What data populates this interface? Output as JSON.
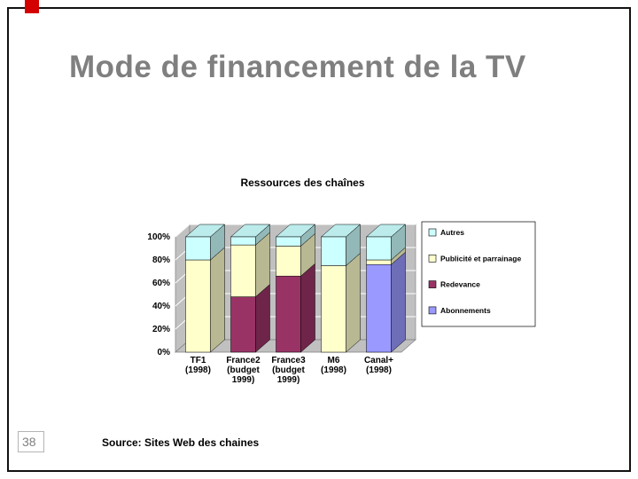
{
  "slide": {
    "title": "Mode de financement de la TV",
    "page_number": "38",
    "source_text": "Source: Sites Web des chaines",
    "accent_color": "#d40000",
    "title_color": "#7f7f7f"
  },
  "chart_data": {
    "type": "bar",
    "variant": "3d-stacked-100-percent-columns",
    "title": "Ressources des chaînes",
    "categories": [
      "TF1 (1998)",
      "France2 (budget 1999)",
      "France3 (budget 1999)",
      "M6 (1998)",
      "Canal+ (1998)"
    ],
    "category_lines": [
      [
        "TF1",
        "(1998)"
      ],
      [
        "France2",
        "(budget",
        "1999)"
      ],
      [
        "France3",
        "(budget",
        "1999)"
      ],
      [
        "M6",
        "(1998)"
      ],
      [
        "Canal+",
        "(1998)"
      ]
    ],
    "series": [
      {
        "name": "Abonnements",
        "color": "#9999FF",
        "values": [
          0,
          0,
          0,
          0,
          76
        ]
      },
      {
        "name": "Redevance",
        "color": "#993366",
        "values": [
          0,
          48,
          66,
          0,
          0
        ]
      },
      {
        "name": "Publicité et parrainage",
        "color": "#FFFFCC",
        "values": [
          80,
          45,
          26,
          75,
          4
        ]
      },
      {
        "name": "Autres",
        "color": "#CCFFFF",
        "values": [
          20,
          7,
          8,
          25,
          20
        ]
      }
    ],
    "legend": [
      "Autres",
      "Publicité et parrainage",
      "Redevance",
      "Abonnements"
    ],
    "legend_position": "right",
    "y_ticks": [
      "0%",
      "20%",
      "40%",
      "60%",
      "80%",
      "100%"
    ],
    "ylim": [
      0,
      100
    ],
    "unit": "%",
    "wall_color": "#c0c0c0",
    "gridline_color": "#ffffff"
  }
}
